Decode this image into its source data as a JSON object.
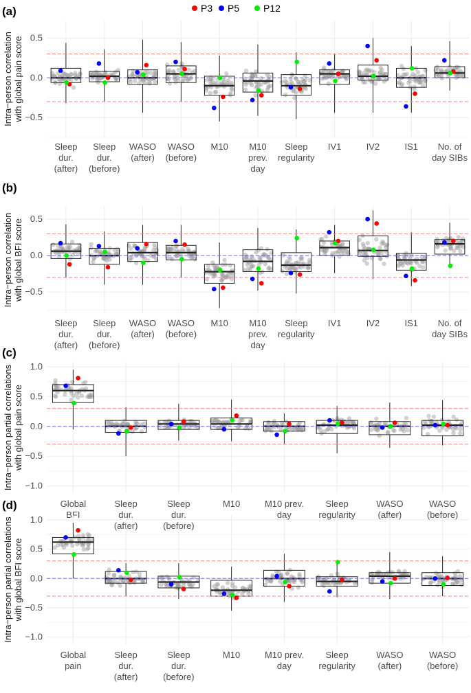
{
  "legend": {
    "entries": [
      {
        "label": "P3",
        "color": "#ff0000"
      },
      {
        "label": "P5",
        "color": "#0000ff"
      },
      {
        "label": "P12",
        "color": "#00ee00"
      }
    ],
    "placement": "top-center"
  },
  "colors": {
    "reference_red": "#f08080",
    "reference_blue": "#6b6bdd",
    "jitter": "#999999"
  },
  "chart_data": [
    {
      "panel": "(a)",
      "type": "box",
      "ylabel_lines": [
        "Intra−person correlation",
        "with global pain score"
      ],
      "ylim": [
        -0.75,
        0.72
      ],
      "yticks": [
        -0.5,
        0,
        0.5
      ],
      "ytick_labels": [
        "−0.5",
        "0.0",
        "0.5"
      ],
      "hlines": {
        "red": [
          0.3,
          -0.3
        ],
        "blue": [
          0.0
        ]
      },
      "categories": [
        {
          "lines": [
            "Sleep",
            "dur.",
            "(after)"
          ],
          "q1": -0.06,
          "median": 0.0,
          "q3": 0.12,
          "wlo": -0.32,
          "whi": 0.44,
          "P3": -0.08,
          "P5": 0.09,
          "P12": -0.06
        },
        {
          "lines": [
            "Sleep",
            "dur.",
            "(before)"
          ],
          "q1": -0.05,
          "median": 0.02,
          "q3": 0.08,
          "wlo": -0.3,
          "whi": 0.36,
          "P3": 0.0,
          "P5": 0.18,
          "P12": -0.06
        },
        {
          "lines": [
            "WASO",
            "(after)"
          ],
          "q1": -0.08,
          "median": 0.0,
          "q3": 0.1,
          "wlo": -0.44,
          "whi": 0.48,
          "P3": 0.16,
          "P5": 0.07,
          "P12": 0.04
        },
        {
          "lines": [
            "WASO",
            "(before)"
          ],
          "q1": -0.06,
          "median": 0.05,
          "q3": 0.15,
          "wlo": -0.3,
          "whi": 0.45,
          "P3": 0.11,
          "P5": 0.2,
          "P12": 0.05
        },
        {
          "lines": [
            "M10"
          ],
          "q1": -0.22,
          "median": -0.1,
          "q3": 0.02,
          "wlo": -0.55,
          "whi": 0.28,
          "P3": -0.24,
          "P5": -0.38,
          "P12": 0.0
        },
        {
          "lines": [
            "M10",
            "prev.",
            "day"
          ],
          "q1": -0.18,
          "median": -0.04,
          "q3": 0.06,
          "wlo": -0.48,
          "whi": 0.42,
          "P3": -0.22,
          "P5": -0.28,
          "P12": -0.16
        },
        {
          "lines": [
            "Sleep",
            "regularity"
          ],
          "q1": -0.22,
          "median": -0.1,
          "q3": 0.04,
          "wlo": -0.52,
          "whi": 0.32,
          "P3": -0.14,
          "P5": -0.12,
          "P12": 0.2
        },
        {
          "lines": [
            "IV1"
          ],
          "q1": -0.08,
          "median": 0.05,
          "q3": 0.1,
          "wlo": -0.44,
          "whi": 0.3,
          "P3": 0.05,
          "P5": 0.18,
          "P12": -0.04
        },
        {
          "lines": [
            "IV2"
          ],
          "q1": -0.03,
          "median": 0.02,
          "q3": 0.16,
          "wlo": -0.44,
          "whi": 0.5,
          "P3": 0.22,
          "P5": 0.4,
          "P12": 0.02
        },
        {
          "lines": [
            "IS1"
          ],
          "q1": -0.12,
          "median": 0.0,
          "q3": 0.12,
          "wlo": -0.44,
          "whi": 0.4,
          "P3": -0.2,
          "P5": -0.36,
          "P12": 0.12
        },
        {
          "lines": [
            "No. of",
            "day SIBs"
          ],
          "q1": 0.0,
          "median": 0.06,
          "q3": 0.14,
          "wlo": -0.16,
          "whi": 0.46,
          "P3": 0.08,
          "P5": 0.22,
          "P12": 0.06
        }
      ]
    },
    {
      "panel": "(b)",
      "type": "box",
      "ylabel_lines": [
        "Intra−person correlation",
        "with global BFI score"
      ],
      "ylim": [
        -0.8,
        0.68
      ],
      "yticks": [
        -0.5,
        0,
        0.5
      ],
      "ytick_labels": [
        "−0.5",
        "0.0",
        "0.5"
      ],
      "hlines": {
        "red": [
          0.3,
          -0.3
        ],
        "blue": [
          0.0
        ]
      },
      "categories": [
        {
          "lines": [
            "Sleep",
            "dur.",
            "(after)"
          ],
          "q1": -0.04,
          "median": 0.06,
          "q3": 0.16,
          "wlo": -0.3,
          "whi": 0.43,
          "P3": -0.12,
          "P5": 0.17,
          "P12": 0.0
        },
        {
          "lines": [
            "Sleep",
            "dur.",
            "(before)"
          ],
          "q1": -0.12,
          "median": 0.0,
          "q3": 0.1,
          "wlo": -0.4,
          "whi": 0.33,
          "P3": -0.16,
          "P5": 0.13,
          "P12": 0.05
        },
        {
          "lines": [
            "WASO",
            "(after)"
          ],
          "q1": -0.08,
          "median": 0.04,
          "q3": 0.18,
          "wlo": -0.4,
          "whi": 0.42,
          "P3": 0.16,
          "P5": 0.1,
          "P12": -0.1
        },
        {
          "lines": [
            "WASO",
            "(before)"
          ],
          "q1": -0.06,
          "median": 0.04,
          "q3": 0.14,
          "wlo": -0.3,
          "whi": 0.42,
          "P3": 0.15,
          "P5": 0.2,
          "P12": -0.05
        },
        {
          "lines": [
            "M10"
          ],
          "q1": -0.38,
          "median": -0.22,
          "q3": -0.12,
          "wlo": -0.72,
          "whi": 0.18,
          "P3": -0.44,
          "P5": -0.46,
          "P12": -0.2
        },
        {
          "lines": [
            "M10",
            "prev.",
            "day"
          ],
          "q1": -0.22,
          "median": -0.08,
          "q3": 0.08,
          "wlo": -0.48,
          "whi": 0.38,
          "P3": -0.38,
          "P5": -0.32,
          "P12": -0.18
        },
        {
          "lines": [
            "Sleep",
            "regularity"
          ],
          "q1": -0.22,
          "median": -0.13,
          "q3": 0.04,
          "wlo": -0.52,
          "whi": 0.36,
          "P3": -0.26,
          "P5": -0.24,
          "P12": 0.24
        },
        {
          "lines": [
            "IV1"
          ],
          "q1": 0.0,
          "median": 0.11,
          "q3": 0.2,
          "wlo": -0.24,
          "whi": 0.42,
          "P3": 0.2,
          "P5": 0.32,
          "P12": 0.17
        },
        {
          "lines": [
            "IV2"
          ],
          "q1": -0.01,
          "median": 0.07,
          "q3": 0.27,
          "wlo": -0.32,
          "whi": 0.62,
          "P3": 0.44,
          "P5": 0.5,
          "P12": 0.08
        },
        {
          "lines": [
            "IS1"
          ],
          "q1": -0.2,
          "median": -0.06,
          "q3": 0.03,
          "wlo": -0.42,
          "whi": 0.32,
          "P3": -0.34,
          "P5": -0.28,
          "P12": -0.18
        },
        {
          "lines": [
            "No. of",
            "day SIBs"
          ],
          "q1": 0.02,
          "median": 0.16,
          "q3": 0.22,
          "wlo": -0.14,
          "whi": 0.45,
          "P3": 0.2,
          "P5": 0.18,
          "P12": -0.14
        }
      ]
    },
    {
      "panel": "(c)",
      "type": "box",
      "ylabel_lines": [
        "Intra−person partial correlations",
        "with global pain score"
      ],
      "ylim": [
        -1.12,
        1.08
      ],
      "yticks": [
        -1.0,
        -0.5,
        0,
        0.5,
        1.0
      ],
      "ytick_labels": [
        "−1.0",
        "−0.5",
        "0.0",
        "0.5",
        "1.0"
      ],
      "hlines": {
        "red": [
          0.3,
          -0.3
        ],
        "blue": [
          0.0
        ]
      },
      "categories": [
        {
          "lines": [
            "Global",
            "BFI"
          ],
          "q1": 0.4,
          "median": 0.6,
          "q3": 0.7,
          "wlo": -0.05,
          "whi": 0.95,
          "P3": 0.81,
          "P5": 0.68,
          "P12": 0.39
        },
        {
          "lines": [
            "Sleep",
            "dur.",
            "(after)"
          ],
          "q1": -0.1,
          "median": 0.0,
          "q3": 0.1,
          "wlo": -0.5,
          "whi": 0.32,
          "P3": -0.02,
          "P5": -0.12,
          "P12": -0.08
        },
        {
          "lines": [
            "Sleep",
            "dur.",
            "(before)"
          ],
          "q1": -0.05,
          "median": 0.04,
          "q3": 0.1,
          "wlo": -0.24,
          "whi": 0.38,
          "P3": 0.08,
          "P5": 0.04,
          "P12": -0.02
        },
        {
          "lines": [
            "M10"
          ],
          "q1": -0.05,
          "median": 0.04,
          "q3": 0.14,
          "wlo": -0.25,
          "whi": 0.45,
          "P3": 0.18,
          "P5": -0.05,
          "P12": 0.1
        },
        {
          "lines": [
            "M10 prev.",
            "day"
          ],
          "q1": -0.08,
          "median": 0.0,
          "q3": 0.08,
          "wlo": -0.3,
          "whi": 0.22,
          "P3": 0.04,
          "P5": -0.14,
          "P12": -0.08
        },
        {
          "lines": [
            "Sleep",
            "regularity"
          ],
          "q1": -0.12,
          "median": 0.02,
          "q3": 0.1,
          "wlo": -0.45,
          "whi": 0.34,
          "P3": 0.06,
          "P5": 0.1,
          "P12": 0.04
        },
        {
          "lines": [
            "WASO",
            "(after)"
          ],
          "q1": -0.14,
          "median": 0.0,
          "q3": 0.08,
          "wlo": -0.36,
          "whi": 0.4,
          "P3": 0.06,
          "P5": -0.02,
          "P12": 0.0
        },
        {
          "lines": [
            "WASO",
            "(before)"
          ],
          "q1": -0.16,
          "median": 0.02,
          "q3": 0.1,
          "wlo": -0.32,
          "whi": 0.44,
          "P3": 0.02,
          "P5": 0.02,
          "P12": 0.04
        }
      ]
    },
    {
      "panel": "(d)",
      "type": "box",
      "ylabel_lines": [
        "Intra−person partial correlations",
        "with global BFI score"
      ],
      "ylim": [
        -1.12,
        1.08
      ],
      "yticks": [
        -1.0,
        -0.5,
        0,
        0.5,
        1.0
      ],
      "ytick_labels": [
        "−1.0",
        "−0.5",
        "0.0",
        "0.5",
        "1.0"
      ],
      "hlines": {
        "red": [
          0.3,
          -0.3
        ],
        "blue": [
          0.0
        ]
      },
      "categories": [
        {
          "lines": [
            "Global",
            "pain"
          ],
          "q1": 0.42,
          "median": 0.62,
          "q3": 0.7,
          "wlo": 0.0,
          "whi": 0.95,
          "P3": 0.82,
          "P5": 0.7,
          "P12": 0.41
        },
        {
          "lines": [
            "Sleep",
            "dur.",
            "(after)"
          ],
          "q1": -0.08,
          "median": 0.0,
          "q3": 0.12,
          "wlo": -0.3,
          "whi": 0.26,
          "P3": -0.02,
          "P5": 0.14,
          "P12": 0.1
        },
        {
          "lines": [
            "Sleep",
            "dur.",
            "(before)"
          ],
          "q1": -0.16,
          "median": -0.06,
          "q3": 0.04,
          "wlo": -0.35,
          "whi": 0.26,
          "P3": -0.18,
          "P5": -0.1,
          "P12": 0.02
        },
        {
          "lines": [
            "M10"
          ],
          "q1": -0.3,
          "median": -0.2,
          "q3": -0.03,
          "wlo": -0.55,
          "whi": 0.2,
          "P3": -0.33,
          "P5": -0.26,
          "P12": -0.28
        },
        {
          "lines": [
            "M10 prev.",
            "day"
          ],
          "q1": -0.13,
          "median": 0.0,
          "q3": 0.14,
          "wlo": -0.4,
          "whi": 0.42,
          "P3": -0.13,
          "P5": 0.04,
          "P12": -0.06
        },
        {
          "lines": [
            "Sleep",
            "regularity"
          ],
          "q1": -0.13,
          "median": -0.05,
          "q3": 0.03,
          "wlo": -0.32,
          "whi": 0.3,
          "P3": -0.02,
          "P5": -0.22,
          "P12": 0.28
        },
        {
          "lines": [
            "WASO",
            "(after)"
          ],
          "q1": -0.08,
          "median": 0.04,
          "q3": 0.1,
          "wlo": -0.35,
          "whi": 0.45,
          "P3": 0.0,
          "P5": -0.05,
          "P12": -0.08
        },
        {
          "lines": [
            "WASO",
            "(before)"
          ],
          "q1": -0.12,
          "median": 0.0,
          "q3": 0.1,
          "wlo": -0.3,
          "whi": 0.38,
          "P3": 0.01,
          "P5": 0.0,
          "P12": -0.1
        }
      ]
    }
  ]
}
